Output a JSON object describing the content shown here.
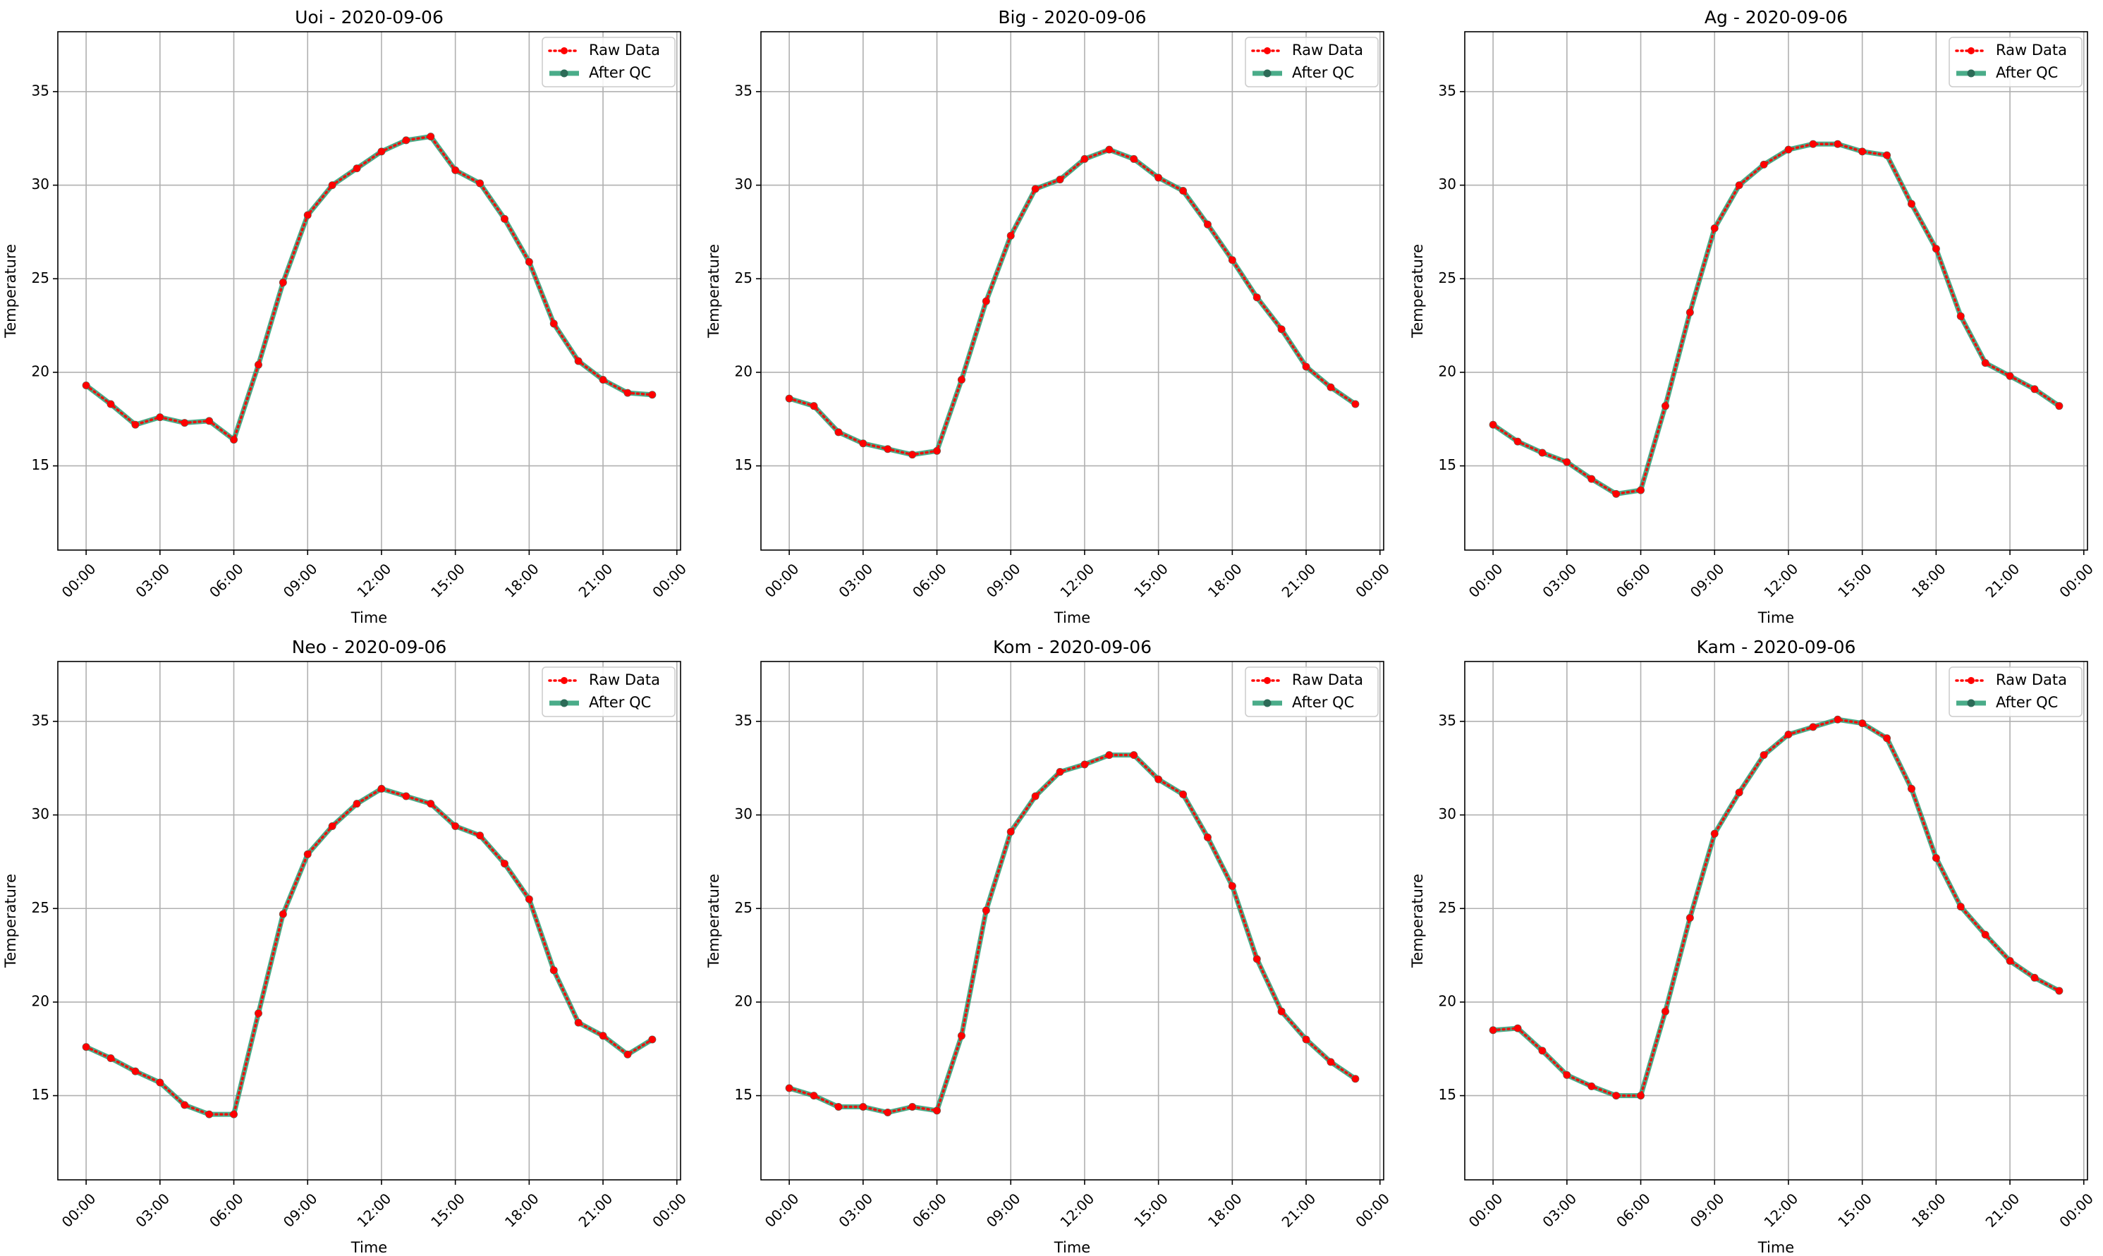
{
  "chart_data": [
    {
      "type": "line",
      "title": "Uoi - 2020-09-06",
      "xlabel": "Time",
      "ylabel": "Temperature",
      "x": [
        "00:00",
        "01:00",
        "02:00",
        "03:00",
        "04:00",
        "05:00",
        "06:00",
        "07:00",
        "08:00",
        "09:00",
        "10:00",
        "11:00",
        "12:00",
        "13:00",
        "14:00",
        "15:00",
        "16:00",
        "17:00",
        "18:00",
        "19:00",
        "20:00",
        "21:00",
        "22:00",
        "23:00"
      ],
      "xticks": [
        "00:00",
        "03:00",
        "06:00",
        "09:00",
        "12:00",
        "15:00",
        "18:00",
        "21:00",
        "00:00"
      ],
      "yticks": [
        "15",
        "20",
        "25",
        "30",
        "35"
      ],
      "ylim": [
        10.5,
        38.2
      ],
      "grid": true,
      "legend": "top-right",
      "series": [
        {
          "name": "Raw Data",
          "color": "#ff0000",
          "values": [
            19.3,
            18.3,
            17.2,
            17.6,
            17.3,
            17.4,
            16.4,
            20.4,
            24.8,
            28.4,
            30.0,
            30.9,
            31.8,
            32.4,
            32.6,
            30.8,
            30.1,
            28.2,
            25.9,
            22.6,
            20.6,
            19.6,
            18.9,
            18.8
          ]
        },
        {
          "name": "After QC",
          "color": "#2a9d74",
          "values": [
            19.3,
            18.3,
            17.2,
            17.6,
            17.3,
            17.4,
            16.4,
            20.4,
            24.8,
            28.4,
            30.0,
            30.9,
            31.8,
            32.4,
            32.6,
            30.8,
            30.1,
            28.2,
            25.9,
            22.6,
            20.6,
            19.6,
            18.9,
            18.8
          ]
        }
      ]
    },
    {
      "type": "line",
      "title": "Big - 2020-09-06",
      "xlabel": "Time",
      "ylabel": "Temperature",
      "x": [
        "00:00",
        "01:00",
        "02:00",
        "03:00",
        "04:00",
        "05:00",
        "06:00",
        "07:00",
        "08:00",
        "09:00",
        "10:00",
        "11:00",
        "12:00",
        "13:00",
        "14:00",
        "15:00",
        "16:00",
        "17:00",
        "18:00",
        "19:00",
        "20:00",
        "21:00",
        "22:00",
        "23:00"
      ],
      "xticks": [
        "00:00",
        "03:00",
        "06:00",
        "09:00",
        "12:00",
        "15:00",
        "18:00",
        "21:00",
        "00:00"
      ],
      "yticks": [
        "15",
        "20",
        "25",
        "30",
        "35"
      ],
      "ylim": [
        10.5,
        38.2
      ],
      "grid": true,
      "legend": "top-right",
      "series": [
        {
          "name": "Raw Data",
          "color": "#ff0000",
          "values": [
            18.6,
            18.2,
            16.8,
            16.2,
            15.9,
            15.6,
            15.8,
            19.6,
            23.8,
            27.3,
            29.8,
            30.3,
            31.4,
            31.9,
            31.4,
            30.4,
            29.7,
            27.9,
            26.0,
            24.0,
            22.3,
            20.3,
            19.2,
            18.3
          ]
        },
        {
          "name": "After QC",
          "color": "#2a9d74",
          "values": [
            18.6,
            18.2,
            16.8,
            16.2,
            15.9,
            15.6,
            15.8,
            19.6,
            23.8,
            27.3,
            29.8,
            30.3,
            31.4,
            31.9,
            31.4,
            30.4,
            29.7,
            27.9,
            26.0,
            24.0,
            22.3,
            20.3,
            19.2,
            18.3
          ]
        }
      ]
    },
    {
      "type": "line",
      "title": "Ag - 2020-09-06",
      "xlabel": "Time",
      "ylabel": "Temperature",
      "x": [
        "00:00",
        "01:00",
        "02:00",
        "03:00",
        "04:00",
        "05:00",
        "06:00",
        "07:00",
        "08:00",
        "09:00",
        "10:00",
        "11:00",
        "12:00",
        "13:00",
        "14:00",
        "15:00",
        "16:00",
        "17:00",
        "18:00",
        "19:00",
        "20:00",
        "21:00",
        "22:00",
        "23:00"
      ],
      "xticks": [
        "00:00",
        "03:00",
        "06:00",
        "09:00",
        "12:00",
        "15:00",
        "18:00",
        "21:00",
        "00:00"
      ],
      "yticks": [
        "15",
        "20",
        "25",
        "30",
        "35"
      ],
      "ylim": [
        10.5,
        38.2
      ],
      "grid": true,
      "legend": "top-right",
      "series": [
        {
          "name": "Raw Data",
          "color": "#ff0000",
          "values": [
            17.2,
            16.3,
            15.7,
            15.2,
            14.3,
            13.5,
            13.7,
            18.2,
            23.2,
            27.7,
            30.0,
            31.1,
            31.9,
            32.2,
            32.2,
            31.8,
            31.6,
            29.0,
            26.6,
            23.0,
            20.5,
            19.8,
            19.1,
            18.2
          ]
        },
        {
          "name": "After QC",
          "color": "#2a9d74",
          "values": [
            17.2,
            16.3,
            15.7,
            15.2,
            14.3,
            13.5,
            13.7,
            18.2,
            23.2,
            27.7,
            30.0,
            31.1,
            31.9,
            32.2,
            32.2,
            31.8,
            31.6,
            29.0,
            26.6,
            23.0,
            20.5,
            19.8,
            19.1,
            18.2
          ]
        }
      ]
    },
    {
      "type": "line",
      "title": "Neo - 2020-09-06",
      "xlabel": "Time",
      "ylabel": "Temperature",
      "x": [
        "00:00",
        "01:00",
        "02:00",
        "03:00",
        "04:00",
        "05:00",
        "06:00",
        "07:00",
        "08:00",
        "09:00",
        "10:00",
        "11:00",
        "12:00",
        "13:00",
        "14:00",
        "15:00",
        "16:00",
        "17:00",
        "18:00",
        "19:00",
        "20:00",
        "21:00",
        "22:00",
        "23:00"
      ],
      "xticks": [
        "00:00",
        "03:00",
        "06:00",
        "09:00",
        "12:00",
        "15:00",
        "18:00",
        "21:00",
        "00:00"
      ],
      "yticks": [
        "15",
        "20",
        "25",
        "30",
        "35"
      ],
      "ylim": [
        10.5,
        38.2
      ],
      "grid": true,
      "legend": "top-right",
      "series": [
        {
          "name": "Raw Data",
          "color": "#ff0000",
          "values": [
            17.6,
            17.0,
            16.3,
            15.7,
            14.5,
            14.0,
            14.0,
            19.4,
            24.7,
            27.9,
            29.4,
            30.6,
            31.4,
            31.0,
            30.6,
            29.4,
            28.9,
            27.4,
            25.5,
            21.7,
            18.9,
            18.2,
            17.2,
            18.0
          ]
        },
        {
          "name": "After QC",
          "color": "#2a9d74",
          "values": [
            17.6,
            17.0,
            16.3,
            15.7,
            14.5,
            14.0,
            14.0,
            19.4,
            24.7,
            27.9,
            29.4,
            30.6,
            31.4,
            31.0,
            30.6,
            29.4,
            28.9,
            27.4,
            25.5,
            21.7,
            18.9,
            18.2,
            17.2,
            18.0
          ]
        }
      ]
    },
    {
      "type": "line",
      "title": "Kom - 2020-09-06",
      "xlabel": "Time",
      "ylabel": "Temperature",
      "x": [
        "00:00",
        "01:00",
        "02:00",
        "03:00",
        "04:00",
        "05:00",
        "06:00",
        "07:00",
        "08:00",
        "09:00",
        "10:00",
        "11:00",
        "12:00",
        "13:00",
        "14:00",
        "15:00",
        "16:00",
        "17:00",
        "18:00",
        "19:00",
        "20:00",
        "21:00",
        "22:00",
        "23:00"
      ],
      "xticks": [
        "00:00",
        "03:00",
        "06:00",
        "09:00",
        "12:00",
        "15:00",
        "18:00",
        "21:00",
        "00:00"
      ],
      "yticks": [
        "15",
        "20",
        "25",
        "30",
        "35"
      ],
      "ylim": [
        10.5,
        38.2
      ],
      "grid": true,
      "legend": "top-right",
      "series": [
        {
          "name": "Raw Data",
          "color": "#ff0000",
          "values": [
            15.4,
            15.0,
            14.4,
            14.4,
            14.1,
            14.4,
            14.2,
            18.2,
            24.9,
            29.1,
            31.0,
            32.3,
            32.7,
            33.2,
            33.2,
            31.9,
            31.1,
            28.8,
            26.2,
            22.3,
            19.5,
            18.0,
            16.8,
            15.9
          ]
        },
        {
          "name": "After QC",
          "color": "#2a9d74",
          "values": [
            15.4,
            15.0,
            14.4,
            14.4,
            14.1,
            14.4,
            14.2,
            18.2,
            24.9,
            29.1,
            31.0,
            32.3,
            32.7,
            33.2,
            33.2,
            31.9,
            31.1,
            28.8,
            26.2,
            22.3,
            19.5,
            18.0,
            16.8,
            15.9
          ]
        }
      ]
    },
    {
      "type": "line",
      "title": "Kam - 2020-09-06",
      "xlabel": "Time",
      "ylabel": "Temperature",
      "x": [
        "00:00",
        "01:00",
        "02:00",
        "03:00",
        "04:00",
        "05:00",
        "06:00",
        "07:00",
        "08:00",
        "09:00",
        "10:00",
        "11:00",
        "12:00",
        "13:00",
        "14:00",
        "15:00",
        "16:00",
        "17:00",
        "18:00",
        "19:00",
        "20:00",
        "21:00",
        "22:00",
        "23:00"
      ],
      "xticks": [
        "00:00",
        "03:00",
        "06:00",
        "09:00",
        "12:00",
        "15:00",
        "18:00",
        "21:00",
        "00:00"
      ],
      "yticks": [
        "15",
        "20",
        "25",
        "30",
        "35"
      ],
      "ylim": [
        10.5,
        38.2
      ],
      "grid": true,
      "legend": "top-right",
      "series": [
        {
          "name": "Raw Data",
          "color": "#ff0000",
          "values": [
            18.5,
            18.6,
            17.4,
            16.1,
            15.5,
            15.0,
            15.0,
            19.5,
            24.5,
            29.0,
            31.2,
            33.2,
            34.3,
            34.7,
            35.1,
            34.9,
            34.1,
            31.4,
            27.7,
            25.1,
            23.6,
            22.2,
            21.3,
            20.6
          ]
        },
        {
          "name": "After QC",
          "color": "#2a9d74",
          "values": [
            18.5,
            18.6,
            17.4,
            16.1,
            15.5,
            15.0,
            15.0,
            19.5,
            24.5,
            29.0,
            31.2,
            33.2,
            34.3,
            34.7,
            35.1,
            34.9,
            34.1,
            31.4,
            27.7,
            25.1,
            23.6,
            22.2,
            21.3,
            20.6
          ]
        }
      ]
    }
  ]
}
